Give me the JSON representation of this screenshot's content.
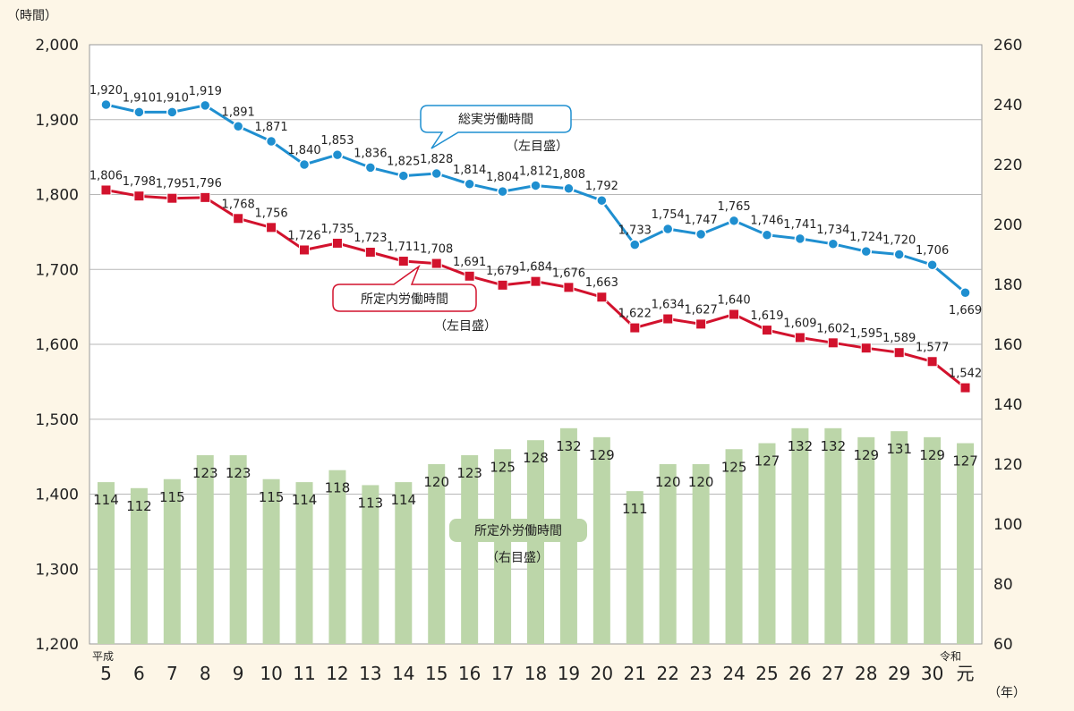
{
  "chart_data": {
    "type": "bar+line",
    "left_unit": "（時間）",
    "year_unit": "（年）",
    "era_heisei": "平成",
    "era_reiwa": "令和",
    "categories": [
      "5",
      "6",
      "7",
      "8",
      "9",
      "10",
      "11",
      "12",
      "13",
      "14",
      "15",
      "16",
      "17",
      "18",
      "19",
      "20",
      "21",
      "22",
      "23",
      "24",
      "25",
      "26",
      "27",
      "28",
      "29",
      "30",
      "元"
    ],
    "left_axis": {
      "min": 1200,
      "max": 2000,
      "step": 100,
      "tick_labels": [
        "1,200",
        "1,300",
        "1,400",
        "1,500",
        "1,600",
        "1,700",
        "1,800",
        "1,900",
        "2,000"
      ]
    },
    "right_axis": {
      "min": 60,
      "max": 260,
      "step": 20,
      "tick_labels": [
        "60",
        "80",
        "100",
        "120",
        "140",
        "160",
        "180",
        "200",
        "220",
        "240",
        "260"
      ]
    },
    "grid": true,
    "series": [
      {
        "name": "総実労働時間",
        "axis": "left",
        "kind": "line",
        "marker": "circle",
        "color": "#1f8fd0",
        "axis_note": "（左目盛）",
        "values": [
          1920,
          1910,
          1910,
          1919,
          1891,
          1871,
          1840,
          1853,
          1836,
          1825,
          1828,
          1814,
          1804,
          1812,
          1808,
          1792,
          1733,
          1754,
          1747,
          1765,
          1746,
          1741,
          1734,
          1724,
          1720,
          1706,
          1669
        ],
        "labels": [
          "1,920",
          "1,910",
          "1,910",
          "1,919",
          "1,891",
          "1,871",
          "1,840",
          "1,853",
          "1,836",
          "1,825",
          "1,828",
          "1,814",
          "1,804",
          "1,812",
          "1,808",
          "1,792",
          "1,733",
          "1,754",
          "1,747",
          "1,765",
          "1,746",
          "1,741",
          "1,734",
          "1,724",
          "1,720",
          "1,706",
          "1,669"
        ]
      },
      {
        "name": "所定内労働時間",
        "axis": "left",
        "kind": "line",
        "marker": "square",
        "color": "#d2122d",
        "axis_note": "（左目盛）",
        "values": [
          1806,
          1798,
          1795,
          1796,
          1768,
          1756,
          1726,
          1735,
          1723,
          1711,
          1708,
          1691,
          1679,
          1684,
          1676,
          1663,
          1622,
          1634,
          1627,
          1640,
          1619,
          1609,
          1602,
          1595,
          1589,
          1577,
          1542
        ],
        "labels": [
          "1,806",
          "1,798",
          "1,795",
          "1,796",
          "1,768",
          "1,756",
          "1,726",
          "1,735",
          "1,723",
          "1,711",
          "1,708",
          "1,691",
          "1,679",
          "1,684",
          "1,676",
          "1,663",
          "1,622",
          "1,634",
          "1,627",
          "1,640",
          "1,619",
          "1,609",
          "1,602",
          "1,595",
          "1,589",
          "1,577",
          "1,542"
        ]
      },
      {
        "name": "所定外労働時間",
        "axis": "right",
        "kind": "bar",
        "color": "#bcd6a9",
        "axis_note": "（右目盛）",
        "values": [
          114,
          112,
          115,
          123,
          123,
          115,
          114,
          118,
          113,
          114,
          120,
          123,
          125,
          128,
          132,
          129,
          111,
          120,
          120,
          125,
          127,
          132,
          132,
          129,
          131,
          129,
          127
        ],
        "labels": [
          "114",
          "112",
          "115",
          "123",
          "123",
          "115",
          "114",
          "118",
          "113",
          "114",
          "120",
          "123",
          "125",
          "128",
          "132",
          "129",
          "111",
          "120",
          "120",
          "125",
          "127",
          "132",
          "132",
          "129",
          "131",
          "129",
          "127"
        ]
      }
    ]
  },
  "colors": {
    "background": "#fdf6e7",
    "plot_background": "#ffffff",
    "grid": "#b7b7b7",
    "axis_text": "#222222"
  }
}
